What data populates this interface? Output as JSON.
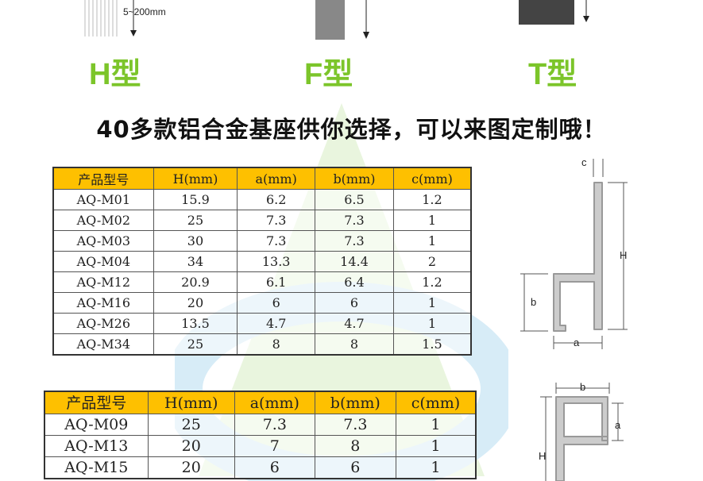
{
  "top": {
    "range_label": "5~200mm",
    "types": [
      "H型",
      "F型",
      "T型"
    ]
  },
  "headline": "40多款铝合金基座供你选择，可以来图定制哦！",
  "colors": {
    "accent_green": "#7cc52a",
    "header_yellow": "#fec000"
  },
  "table1": {
    "headers": [
      "产品型号",
      "H(mm)",
      "a(mm)",
      "b(mm)",
      "c(mm)"
    ],
    "rows": [
      [
        "AQ-M01",
        "15.9",
        "6.2",
        "6.5",
        "1.2"
      ],
      [
        "AQ-M02",
        "25",
        "7.3",
        "7.3",
        "1"
      ],
      [
        "AQ-M03",
        "30",
        "7.3",
        "7.3",
        "1"
      ],
      [
        "AQ-M04",
        "34",
        "13.3",
        "14.4",
        "2"
      ],
      [
        "AQ-M12",
        "20.9",
        "6.1",
        "6.4",
        "1.2"
      ],
      [
        "AQ-M16",
        "20",
        "6",
        "6",
        "1"
      ],
      [
        "AQ-M26",
        "13.5",
        "4.7",
        "4.7",
        "1"
      ],
      [
        "AQ-M34",
        "25",
        "8",
        "8",
        "1.5"
      ]
    ]
  },
  "table2": {
    "headers": [
      "产品型号",
      "H(mm)",
      "a(mm)",
      "b(mm)",
      "c(mm)"
    ],
    "rows": [
      [
        "AQ-M09",
        "25",
        "7.3",
        "7.3",
        "1"
      ],
      [
        "AQ-M13",
        "20",
        "7",
        "8",
        "1"
      ],
      [
        "AQ-M15",
        "20",
        "6",
        "6",
        "1"
      ]
    ]
  },
  "diagram1": {
    "c": "c",
    "H": "H",
    "b": "b",
    "a": "a"
  },
  "diagram2": {
    "b": "b",
    "a": "a",
    "H": "H"
  }
}
